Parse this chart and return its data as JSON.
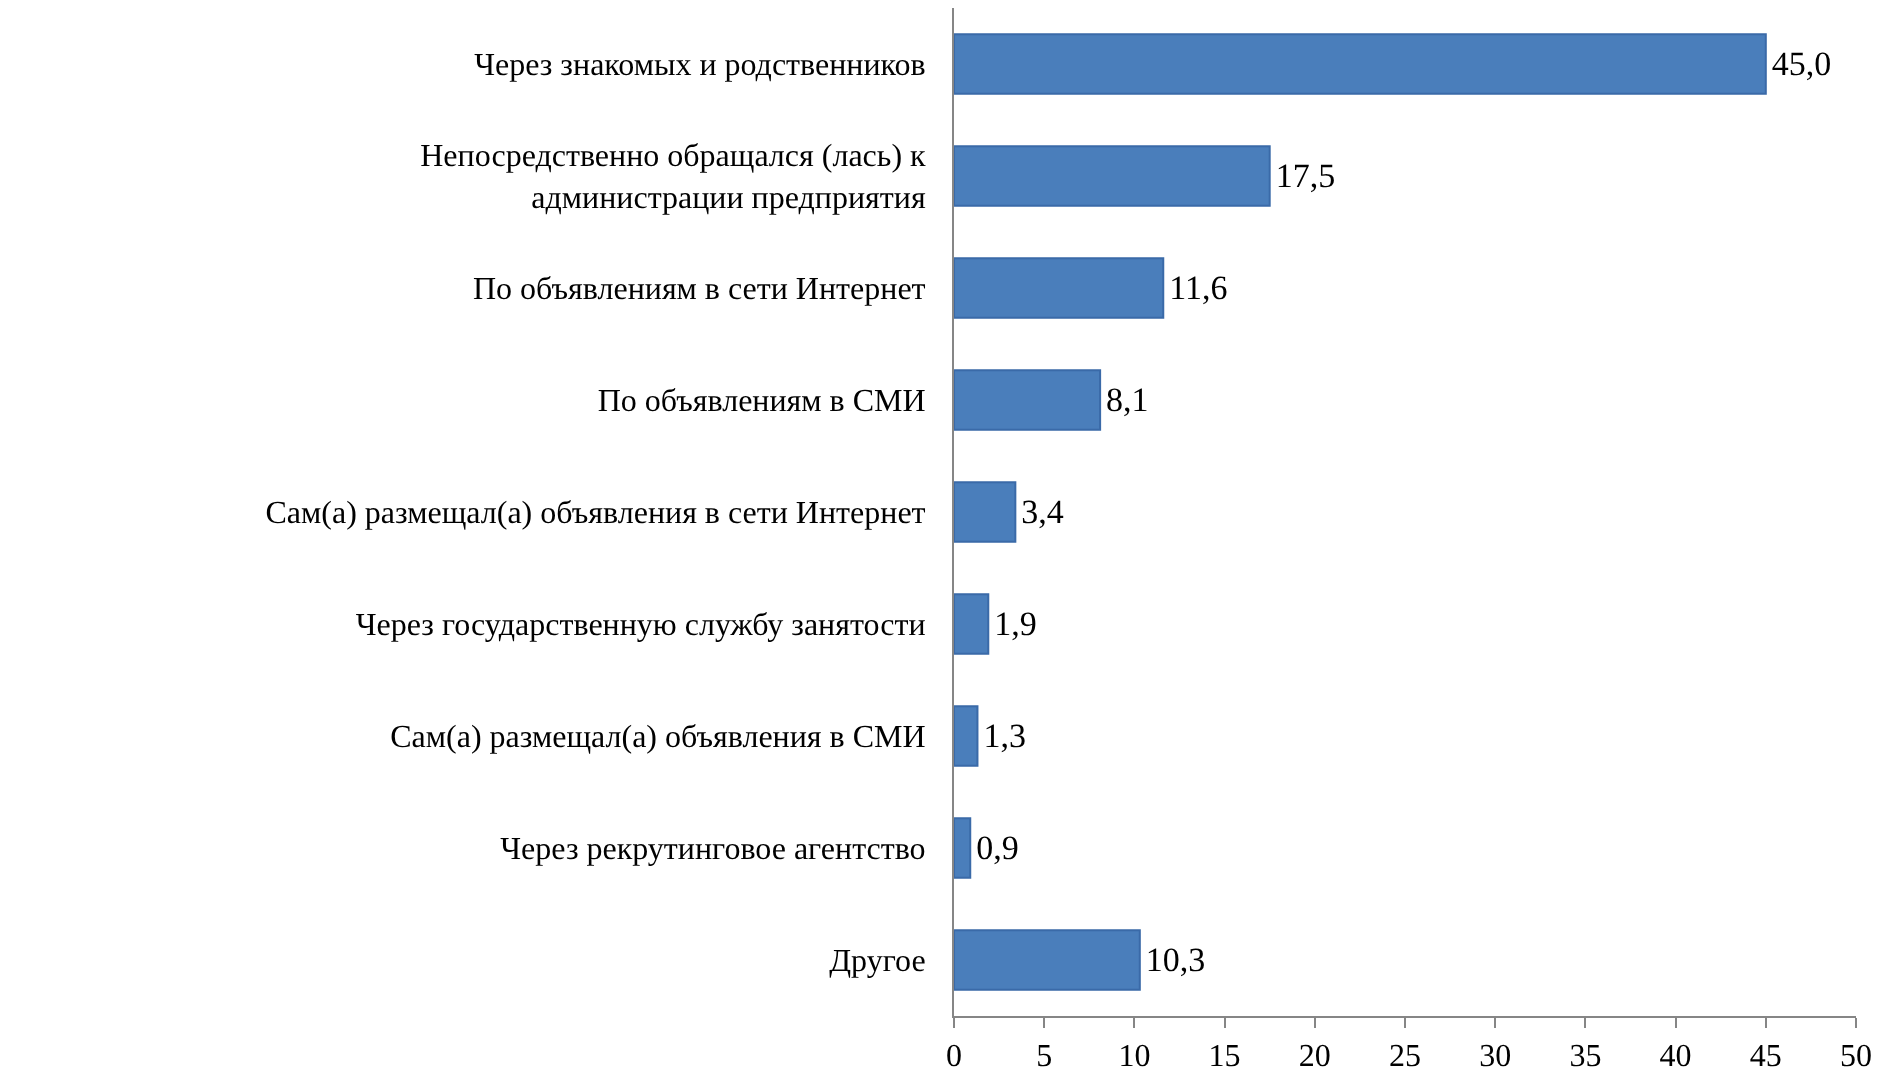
{
  "chart_data": {
    "type": "bar",
    "orientation": "horizontal",
    "categories": [
      "Через знакомых и родственников",
      "Непосредственно обращался (лась) к\nадминистрации предприятия",
      "По объявлениям в сети Интернет",
      "По объявлениям в СМИ",
      "Сам(а) размещал(а) объявления в сети Интернет",
      "Через государственную службу занятости",
      "Сам(а) размещал(а) объявления в СМИ",
      "Через рекрутинговое агентство",
      "Другое"
    ],
    "values": [
      45.0,
      17.5,
      11.6,
      8.1,
      3.4,
      1.9,
      1.3,
      0.9,
      10.3
    ],
    "value_labels": [
      "45,0",
      "17,5",
      "11,6",
      "8,1",
      "3,4",
      "1,9",
      "1,3",
      "0,9",
      "10,3"
    ],
    "color": "#4a7ebb",
    "xlim": [
      0,
      50
    ],
    "xticks": [
      0,
      5,
      10,
      15,
      20,
      25,
      30,
      35,
      40,
      45,
      50
    ],
    "legend": false
  }
}
